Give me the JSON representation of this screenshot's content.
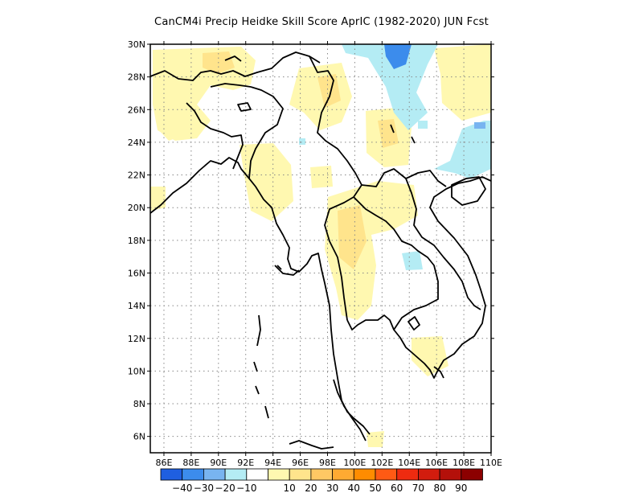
{
  "title": "CanCM4i Precip Heidke Skill Score AprIC (1982-2020) JUN Fcst",
  "map": {
    "lon_range": [
      85,
      110
    ],
    "lat_range": [
      5,
      30
    ],
    "lon_ticks": [
      {
        "value": 86,
        "label": "86E"
      },
      {
        "value": 88,
        "label": "88E"
      },
      {
        "value": 90,
        "label": "90E"
      },
      {
        "value": 92,
        "label": "92E"
      },
      {
        "value": 94,
        "label": "94E"
      },
      {
        "value": 96,
        "label": "96E"
      },
      {
        "value": 98,
        "label": "98E"
      },
      {
        "value": 100,
        "label": "100E"
      },
      {
        "value": 102,
        "label": "102E"
      },
      {
        "value": 104,
        "label": "104E"
      },
      {
        "value": 106,
        "label": "106E"
      },
      {
        "value": 108,
        "label": "108E"
      },
      {
        "value": 110,
        "label": "110E"
      }
    ],
    "lat_ticks": [
      {
        "value": 6,
        "label": "6N"
      },
      {
        "value": 8,
        "label": "8N"
      },
      {
        "value": 10,
        "label": "10N"
      },
      {
        "value": 12,
        "label": "12N"
      },
      {
        "value": 14,
        "label": "14N"
      },
      {
        "value": 16,
        "label": "16N"
      },
      {
        "value": 18,
        "label": "18N"
      },
      {
        "value": 20,
        "label": "20N"
      },
      {
        "value": 22,
        "label": "22N"
      },
      {
        "value": 24,
        "label": "24N"
      },
      {
        "value": 26,
        "label": "26N"
      },
      {
        "value": 28,
        "label": "28N"
      },
      {
        "value": 30,
        "label": "30N"
      }
    ],
    "grid": "dotted"
  },
  "legend": {
    "colors": [
      "#1f5fe0",
      "#3c8cec",
      "#78b4f0",
      "#b4ecf4",
      "#ffffff",
      "#fff8b0",
      "#ffe48c",
      "#ffc864",
      "#ffaa32",
      "#ff8c00",
      "#ff5a14",
      "#ee2b10",
      "#d21c0e",
      "#b4100a",
      "#8c0000"
    ],
    "labels": [
      "-40",
      "-30",
      "-20",
      "-10",
      "10",
      "20",
      "30",
      "40",
      "50",
      "60",
      "70",
      "80",
      "90"
    ]
  }
}
